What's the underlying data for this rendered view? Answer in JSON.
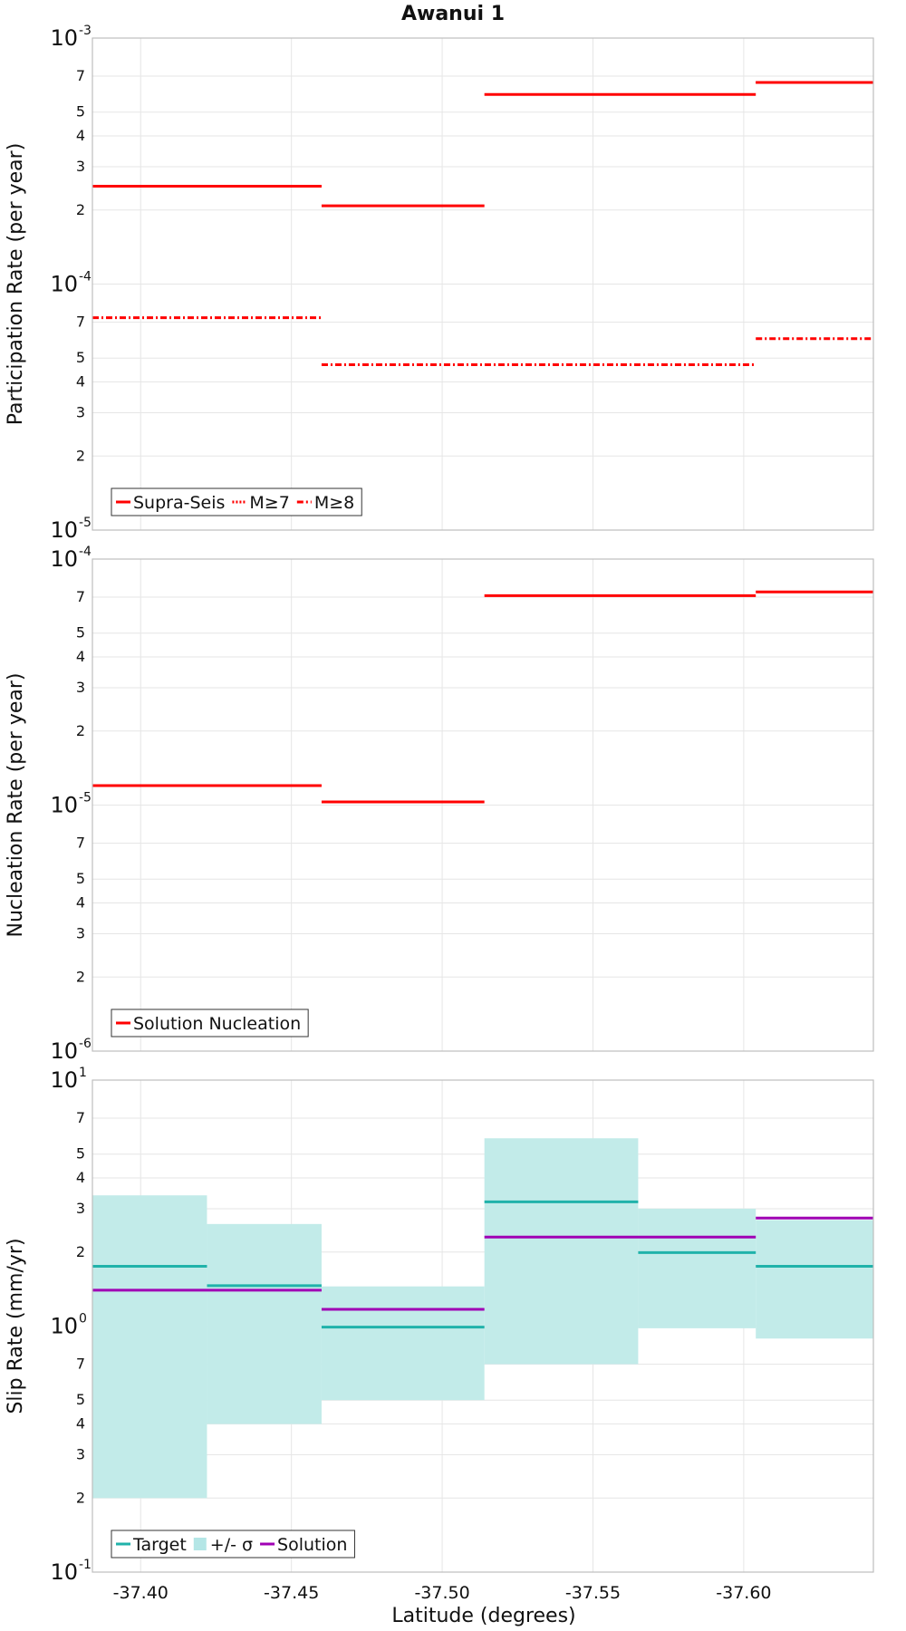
{
  "chart_data": [
    {
      "type": "line",
      "title": "Awanui 1",
      "ylabel": "Participation Rate (per year)",
      "yscale": "log",
      "ylim": [
        1e-05,
        0.001
      ],
      "y_major_ticks": [
        {
          "base": "10",
          "exp": "-5",
          "value": 1e-05
        },
        {
          "base": "10",
          "exp": "-4",
          "value": 0.0001
        },
        {
          "base": "10",
          "exp": "-3",
          "value": 0.001
        }
      ],
      "y_minor_ticks": [
        {
          "label": "2",
          "value": 2e-05
        },
        {
          "label": "3",
          "value": 3e-05
        },
        {
          "label": "4",
          "value": 4e-05
        },
        {
          "label": "5",
          "value": 5e-05
        },
        {
          "label": "7",
          "value": 7e-05
        },
        {
          "label": "2",
          "value": 0.0002
        },
        {
          "label": "3",
          "value": 0.0003
        },
        {
          "label": "4",
          "value": 0.0004
        },
        {
          "label": "5",
          "value": 0.0005
        },
        {
          "label": "7",
          "value": 0.0007
        }
      ],
      "legend_position": "bottom-left",
      "series": [
        {
          "name": "Supra-Seis",
          "color": "#ff0000",
          "style": "solid",
          "segments": [
            [
              -37.384,
              -37.46,
              0.00025
            ],
            [
              -37.46,
              -37.514,
              0.000208
            ],
            [
              -37.514,
              -37.604,
              0.00059
            ],
            [
              -37.604,
              -37.643,
              0.00066
            ]
          ]
        },
        {
          "name": "M≥7",
          "color": "#ff0000",
          "style": "dotted",
          "segments": [
            [
              -37.604,
              -37.643,
              0.00066
            ]
          ]
        },
        {
          "name": "M≥8",
          "color": "#ff0000",
          "style": "dashdot",
          "segments": [
            [
              -37.384,
              -37.46,
              7.3e-05
            ],
            [
              -37.46,
              -37.604,
              4.7e-05
            ],
            [
              -37.604,
              -37.643,
              6e-05
            ]
          ]
        }
      ]
    },
    {
      "type": "line",
      "ylabel": "Nucleation Rate (per year)",
      "yscale": "log",
      "ylim": [
        1e-06,
        0.0001
      ],
      "y_major_ticks": [
        {
          "base": "10",
          "exp": "-6",
          "value": 1e-06
        },
        {
          "base": "10",
          "exp": "-5",
          "value": 1e-05
        },
        {
          "base": "10",
          "exp": "-4",
          "value": 0.0001
        }
      ],
      "y_minor_ticks": [
        {
          "label": "2",
          "value": 2e-06
        },
        {
          "label": "3",
          "value": 3e-06
        },
        {
          "label": "4",
          "value": 4e-06
        },
        {
          "label": "5",
          "value": 5e-06
        },
        {
          "label": "7",
          "value": 7e-06
        },
        {
          "label": "2",
          "value": 2e-05
        },
        {
          "label": "3",
          "value": 3e-05
        },
        {
          "label": "4",
          "value": 4e-05
        },
        {
          "label": "5",
          "value": 5e-05
        },
        {
          "label": "7",
          "value": 7e-05
        }
      ],
      "legend_position": "bottom-left",
      "series": [
        {
          "name": "Solution Nucleation",
          "color": "#ff0000",
          "style": "solid",
          "segments": [
            [
              -37.384,
              -37.46,
              1.2e-05
            ],
            [
              -37.46,
              -37.514,
              1.03e-05
            ],
            [
              -37.514,
              -37.604,
              7.1e-05
            ],
            [
              -37.604,
              -37.643,
              7.35e-05
            ]
          ]
        }
      ]
    },
    {
      "type": "line",
      "ylabel": "Slip Rate (mm/yr)",
      "xlabel": "Latitude (degrees)",
      "yscale": "log",
      "ylim": [
        0.1,
        10
      ],
      "y_major_ticks": [
        {
          "base": "10",
          "exp": "-1",
          "value": 0.1
        },
        {
          "base": "10",
          "exp": "0",
          "value": 1
        },
        {
          "base": "10",
          "exp": "1",
          "value": 10
        }
      ],
      "y_minor_ticks": [
        {
          "label": "2",
          "value": 0.2
        },
        {
          "label": "3",
          "value": 0.3
        },
        {
          "label": "4",
          "value": 0.4
        },
        {
          "label": "5",
          "value": 0.5
        },
        {
          "label": "7",
          "value": 0.7
        },
        {
          "label": "2",
          "value": 2
        },
        {
          "label": "3",
          "value": 3
        },
        {
          "label": "4",
          "value": 4
        },
        {
          "label": "5",
          "value": 5
        },
        {
          "label": "7",
          "value": 7
        }
      ],
      "legend_position": "bottom-left",
      "legend": [
        {
          "name": "Target",
          "color": "#20b2aa",
          "kind": "line"
        },
        {
          "name": "+/- σ",
          "color": "#b4e6e6",
          "kind": "swatch"
        },
        {
          "name": "Solution",
          "color": "#a000b4",
          "kind": "line"
        }
      ],
      "bands": [
        {
          "x": [
            -37.384,
            -37.422
          ],
          "y": [
            0.2,
            3.4
          ]
        },
        {
          "x": [
            -37.422,
            -37.46
          ],
          "y": [
            0.4,
            2.6
          ]
        },
        {
          "x": [
            -37.46,
            -37.514
          ],
          "y": [
            0.5,
            1.45
          ]
        },
        {
          "x": [
            -37.514,
            -37.565
          ],
          "y": [
            0.7,
            5.8
          ]
        },
        {
          "x": [
            -37.565,
            -37.604
          ],
          "y": [
            0.98,
            3.0
          ]
        },
        {
          "x": [
            -37.604,
            -37.643
          ],
          "y": [
            0.89,
            2.7
          ]
        }
      ],
      "target_segments": [
        [
          -37.384,
          -37.422,
          1.75
        ],
        [
          -37.422,
          -37.46,
          1.46
        ],
        [
          -37.46,
          -37.514,
          0.99
        ],
        [
          -37.514,
          -37.565,
          3.2
        ],
        [
          -37.565,
          -37.604,
          1.99
        ],
        [
          -37.604,
          -37.643,
          1.75
        ]
      ],
      "solution_segments": [
        [
          -37.384,
          -37.46,
          1.4
        ],
        [
          -37.46,
          -37.514,
          1.17
        ],
        [
          -37.514,
          -37.604,
          2.3
        ],
        [
          -37.604,
          -37.643,
          2.75
        ]
      ]
    }
  ],
  "x_axis": {
    "label": "Latitude (degrees)",
    "range": [
      -37.384,
      -37.643
    ],
    "ticks": [
      {
        "value": -37.4,
        "label": "-37.40"
      },
      {
        "value": -37.45,
        "label": "-37.45"
      },
      {
        "value": -37.5,
        "label": "-37.50"
      },
      {
        "value": -37.55,
        "label": "-37.55"
      },
      {
        "value": -37.6,
        "label": "-37.60"
      }
    ]
  }
}
